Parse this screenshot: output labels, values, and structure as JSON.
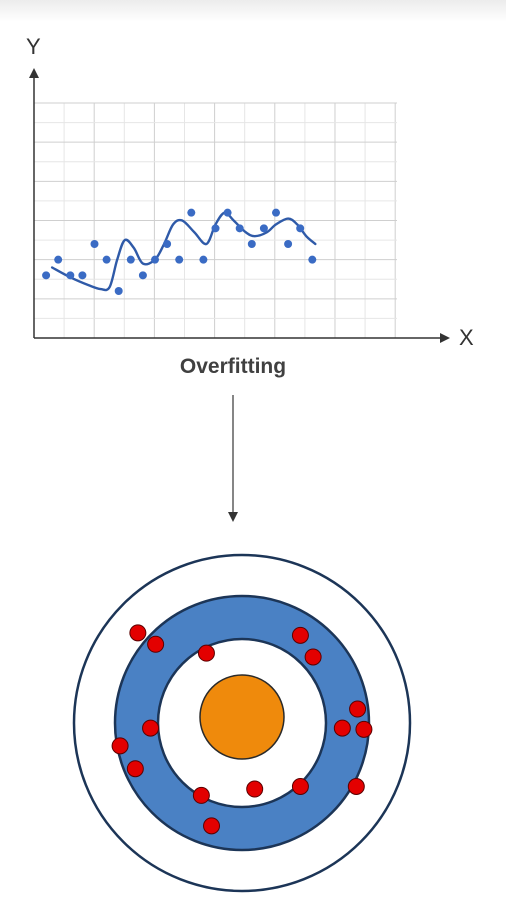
{
  "caption": "Overfitting",
  "chart_data": {
    "type": "scatter",
    "xlabel": "X",
    "ylabel": "Y",
    "grid": true,
    "xlim": [
      0,
      12
    ],
    "ylim": [
      0,
      6
    ],
    "points": [
      [
        0.4,
        1.6
      ],
      [
        0.8,
        2.0
      ],
      [
        1.2,
        1.6
      ],
      [
        1.6,
        1.6
      ],
      [
        2.0,
        2.4
      ],
      [
        2.4,
        2.0
      ],
      [
        2.8,
        1.2
      ],
      [
        3.2,
        2.0
      ],
      [
        3.6,
        1.6
      ],
      [
        4.0,
        2.0
      ],
      [
        4.4,
        2.4
      ],
      [
        4.8,
        2.0
      ],
      [
        5.2,
        3.2
      ],
      [
        5.6,
        2.0
      ],
      [
        6.0,
        2.8
      ],
      [
        6.4,
        3.2
      ],
      [
        6.8,
        2.8
      ],
      [
        7.2,
        2.4
      ],
      [
        7.6,
        2.8
      ],
      [
        8.0,
        3.2
      ],
      [
        8.4,
        2.4
      ],
      [
        8.8,
        2.8
      ],
      [
        9.2,
        2.0
      ]
    ],
    "curve": [
      [
        0.6,
        1.8
      ],
      [
        1.2,
        1.55
      ],
      [
        1.8,
        1.35
      ],
      [
        2.2,
        1.25
      ],
      [
        2.5,
        1.3
      ],
      [
        2.75,
        2.0
      ],
      [
        3.0,
        2.5
      ],
      [
        3.3,
        2.3
      ],
      [
        3.6,
        1.9
      ],
      [
        4.0,
        2.0
      ],
      [
        4.3,
        2.4
      ],
      [
        4.6,
        2.9
      ],
      [
        4.9,
        3.0
      ],
      [
        5.3,
        2.7
      ],
      [
        5.7,
        2.4
      ],
      [
        6.0,
        2.9
      ],
      [
        6.3,
        3.2
      ],
      [
        6.6,
        3.0
      ],
      [
        7.0,
        2.7
      ],
      [
        7.3,
        2.6
      ],
      [
        7.7,
        2.7
      ],
      [
        8.0,
        2.9
      ],
      [
        8.4,
        3.05
      ],
      [
        8.7,
        2.9
      ],
      [
        9.0,
        2.6
      ],
      [
        9.3,
        2.4
      ]
    ],
    "colors": {
      "points": "#3a6bc4",
      "curve": "#2f5aa8",
      "grid": "#dcdcdc",
      "axis": "#333333"
    }
  },
  "target": {
    "colors": {
      "outer_ring": "#ffffff",
      "middle_ring": "#4a81c4",
      "inner_ring": "#ffffff",
      "bullseye": "#ef8a0c",
      "stroke": "#1c3557",
      "hits": "#e30000"
    },
    "hits": [
      [
        -0.82,
        -0.71
      ],
      [
        -0.68,
        -0.62
      ],
      [
        -0.28,
        -0.55
      ],
      [
        0.46,
        -0.69
      ],
      [
        0.56,
        -0.52
      ],
      [
        0.91,
        -0.11
      ],
      [
        0.79,
        0.04
      ],
      [
        0.96,
        0.05
      ],
      [
        -0.72,
        0.04
      ],
      [
        -0.96,
        0.18
      ],
      [
        -0.84,
        0.36
      ],
      [
        -0.32,
        0.57
      ],
      [
        0.1,
        0.52
      ],
      [
        0.46,
        0.5
      ],
      [
        0.9,
        0.5
      ],
      [
        -0.24,
        0.81
      ]
    ]
  }
}
